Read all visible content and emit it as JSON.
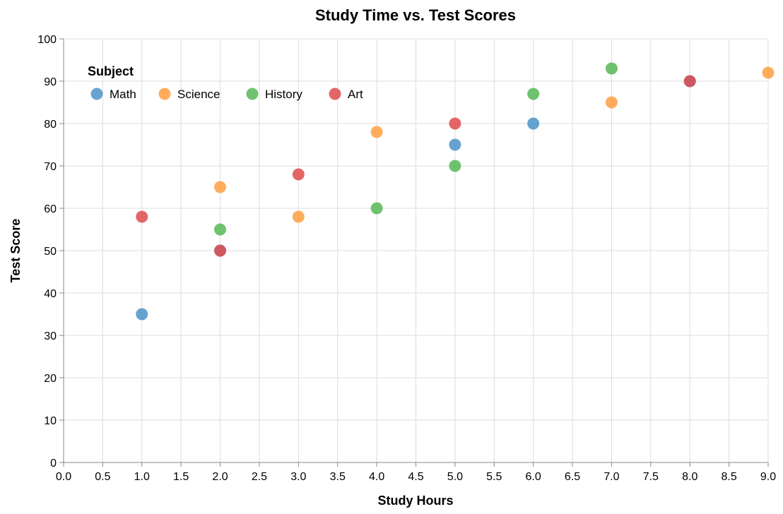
{
  "chart_data": {
    "type": "scatter",
    "title": "Study Time vs. Test Scores",
    "xlabel": "Study Hours",
    "ylabel": "Test Score",
    "xlim": [
      0,
      9
    ],
    "ylim": [
      0,
      100
    ],
    "x_ticks": [
      "0.0",
      "0.5",
      "1.0",
      "1.5",
      "2.0",
      "2.5",
      "3.0",
      "3.5",
      "4.0",
      "4.5",
      "5.0",
      "5.5",
      "6.0",
      "6.5",
      "7.0",
      "7.5",
      "8.0",
      "8.5",
      "9.0"
    ],
    "y_ticks": [
      "0",
      "10",
      "20",
      "30",
      "40",
      "50",
      "60",
      "70",
      "80",
      "90",
      "100"
    ],
    "grid": true,
    "legend": {
      "title": "Subject",
      "placement": "top-left"
    },
    "series": [
      {
        "name": "Math",
        "color": "#4c93c8",
        "points": [
          [
            1,
            35
          ],
          [
            2,
            50
          ],
          [
            5,
            75
          ],
          [
            6,
            80
          ],
          [
            8,
            90
          ]
        ]
      },
      {
        "name": "Science",
        "color": "#ff9f40",
        "points": [
          [
            2,
            65
          ],
          [
            3,
            58
          ],
          [
            4,
            78
          ],
          [
            7,
            85
          ],
          [
            9,
            92
          ]
        ]
      },
      {
        "name": "History",
        "color": "#56b856",
        "points": [
          [
            2,
            55
          ],
          [
            4,
            60
          ],
          [
            5,
            70
          ],
          [
            6,
            87
          ],
          [
            7,
            93
          ]
        ]
      },
      {
        "name": "Art",
        "color": "#e04b4e",
        "points": [
          [
            1,
            58
          ],
          [
            2,
            50
          ],
          [
            3,
            68
          ],
          [
            5,
            80
          ],
          [
            8,
            90
          ]
        ]
      }
    ]
  }
}
